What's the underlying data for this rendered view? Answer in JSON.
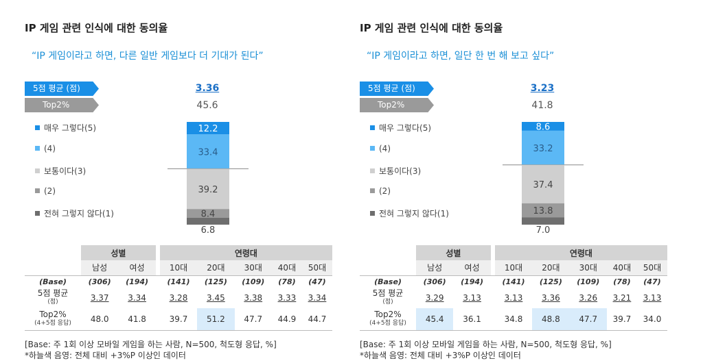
{
  "legend": [
    {
      "label": "매우 그렇다(5)",
      "color": "#1a8fe6"
    },
    {
      "label": "(4)",
      "color": "#5bb8f5"
    },
    {
      "label": "보통이다(3)",
      "color": "#cfcfcf"
    },
    {
      "label": "(2)",
      "color": "#9a9a9a"
    },
    {
      "label": "전혀 그렇지 않다(1)",
      "color": "#6e6e6e"
    }
  ],
  "tags": {
    "avg": "5점 평균 (점)",
    "top2": "Top2%"
  },
  "table_headers": {
    "gender_group": "성별",
    "age_group": "연령대",
    "columns": [
      "남성",
      "여성",
      "10대",
      "20대",
      "30대",
      "40대",
      "50대"
    ],
    "base_label": "(Base)",
    "avg_label": "5점 평균",
    "avg_sub": "(점)",
    "top2_label": "Top2%",
    "top2_sub": "(4+5점 응답)"
  },
  "notes": {
    "base": "[Base: 주 1회 이상 모바일 게임을 하는 사람, N=500, 척도형 응답, %]",
    "highlight": "*하늘색 음영: 전체 대비 +3%P 이상인 데이터"
  },
  "chart_data": [
    {
      "type": "bar",
      "stacked": true,
      "title": "IP 게임 관련 인식에 대한 동의율",
      "subtitle": "“IP 게임이라고 하면, 다른 일반 게임보다 더 기대가 된다”",
      "avg": "3.36",
      "top2": "45.6",
      "series": [
        {
          "name": "매우 그렇다(5)",
          "value": 12.2
        },
        {
          "name": "(4)",
          "value": 33.4
        },
        {
          "name": "보통이다(3)",
          "value": 39.2
        },
        {
          "name": "(2)",
          "value": 8.4
        },
        {
          "name": "전혀 그렇지 않다(1)",
          "value": 6.8
        }
      ],
      "table": {
        "base": [
          "(306)",
          "(194)",
          "(141)",
          "(125)",
          "(109)",
          "(78)",
          "(47)"
        ],
        "avg": [
          "3.37",
          "3.34",
          "3.28",
          "3.45",
          "3.38",
          "3.33",
          "3.34"
        ],
        "top2": [
          "48.0",
          "41.8",
          "39.7",
          "51.2",
          "47.7",
          "44.9",
          "44.7"
        ],
        "top2_highlight": [
          false,
          false,
          false,
          true,
          false,
          false,
          false
        ]
      }
    },
    {
      "type": "bar",
      "stacked": true,
      "title": "IP 게임 관련 인식에 대한 동의율",
      "subtitle": "“IP 게임이라고 하면, 일단 한 번 해 보고 싶다”",
      "avg": "3.23",
      "top2": "41.8",
      "series": [
        {
          "name": "매우 그렇다(5)",
          "value": 8.6
        },
        {
          "name": "(4)",
          "value": 33.2
        },
        {
          "name": "보통이다(3)",
          "value": 37.4
        },
        {
          "name": "(2)",
          "value": 13.8
        },
        {
          "name": "전혀 그렇지 않다(1)",
          "value": 7.0
        }
      ],
      "table": {
        "base": [
          "(306)",
          "(194)",
          "(141)",
          "(125)",
          "(109)",
          "(78)",
          "(47)"
        ],
        "avg": [
          "3.29",
          "3.13",
          "3.13",
          "3.36",
          "3.26",
          "3.21",
          "3.13"
        ],
        "top2": [
          "45.4",
          "36.1",
          "34.8",
          "48.8",
          "47.7",
          "39.7",
          "34.0"
        ],
        "top2_highlight": [
          true,
          false,
          false,
          true,
          true,
          false,
          false
        ]
      }
    }
  ]
}
